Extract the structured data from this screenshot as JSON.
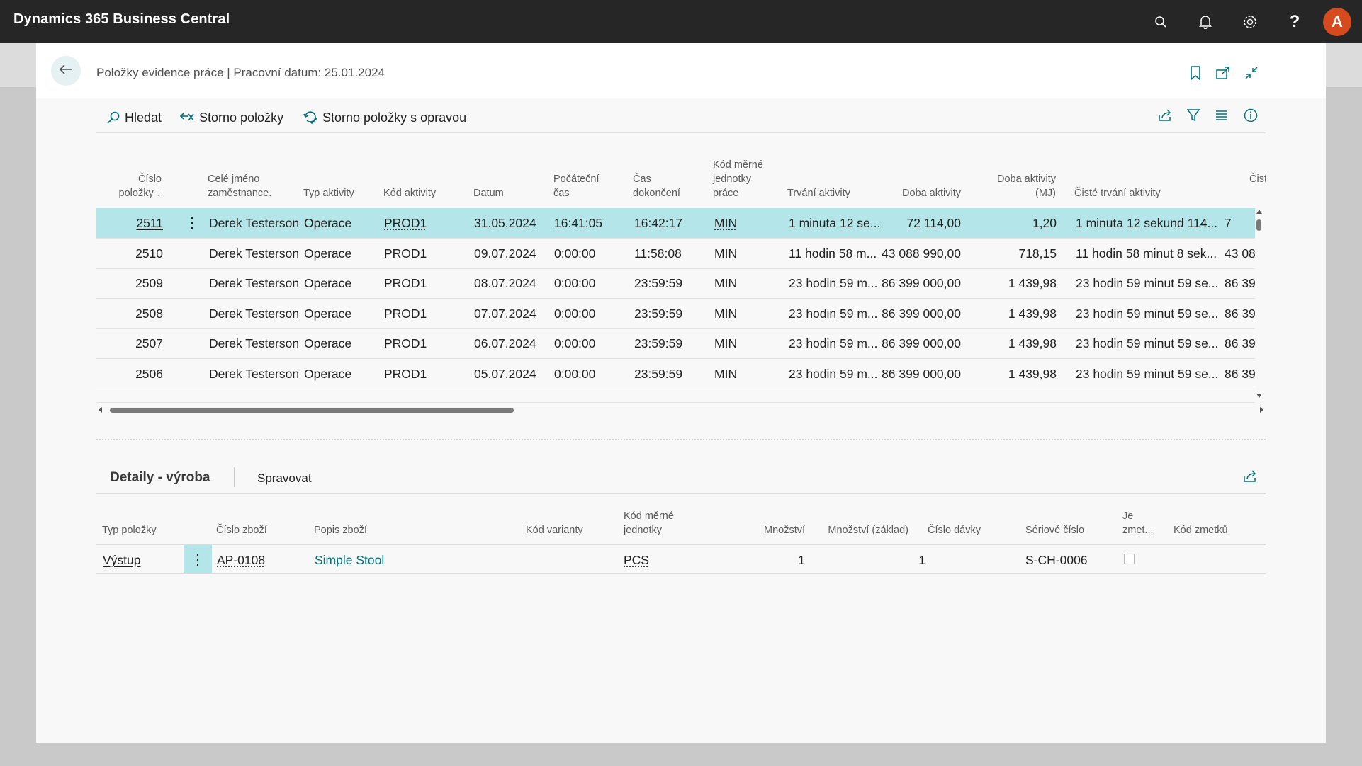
{
  "app": {
    "title": "Dynamics 365 Business Central",
    "user_initial": "A"
  },
  "page": {
    "title": "Položky evidence práce | Pracovní datum: 25.01.2024"
  },
  "actions": {
    "search": "Hledat",
    "reverse": "Storno položky",
    "reverse_correct": "Storno položky s opravou"
  },
  "columns": {
    "entry_no": [
      "Číslo",
      "položky ↓"
    ],
    "employee": [
      "Celé jméno",
      "zaměstnance."
    ],
    "activity_type": "Typ aktivity",
    "activity_code": "Kód aktivity",
    "date": "Datum",
    "start": [
      "Počáteční",
      "čas"
    ],
    "end": [
      "Čas",
      "dokončení"
    ],
    "uom": [
      "Kód měrné",
      "jednotky",
      "práce"
    ],
    "duration": "Trvání aktivity",
    "time": "Doba aktivity",
    "time_uom": [
      "Doba aktivity",
      "(MJ)"
    ],
    "net_duration": "Čisté trvání aktivity",
    "net_cut": "Čist"
  },
  "rows": [
    {
      "no": "2511",
      "employee": "Derek Testerson",
      "type": "Operace",
      "code": "PROD1",
      "date": "31.05.2024",
      "start": "16:41:05",
      "end": "16:42:17",
      "uom": "MIN",
      "duration": "1 minuta 12 se...",
      "time": "72 114,00",
      "time_uom": "1,20",
      "net": "1 minuta 12 sekund 114...",
      "extra": "7"
    },
    {
      "no": "2510",
      "employee": "Derek Testerson",
      "type": "Operace",
      "code": "PROD1",
      "date": "09.07.2024",
      "start": "0:00:00",
      "end": "11:58:08",
      "uom": "MIN",
      "duration": "11 hodin 58 m...",
      "time": "43 088 990,00",
      "time_uom": "718,15",
      "net": "11 hodin 58 minut 8 sek...",
      "extra": "43 08"
    },
    {
      "no": "2509",
      "employee": "Derek Testerson",
      "type": "Operace",
      "code": "PROD1",
      "date": "08.07.2024",
      "start": "0:00:00",
      "end": "23:59:59",
      "uom": "MIN",
      "duration": "23 hodin 59 m...",
      "time": "86 399 000,00",
      "time_uom": "1 439,98",
      "net": "23 hodin 59 minut 59 se...",
      "extra": "86 39"
    },
    {
      "no": "2508",
      "employee": "Derek Testerson",
      "type": "Operace",
      "code": "PROD1",
      "date": "07.07.2024",
      "start": "0:00:00",
      "end": "23:59:59",
      "uom": "MIN",
      "duration": "23 hodin 59 m...",
      "time": "86 399 000,00",
      "time_uom": "1 439,98",
      "net": "23 hodin 59 minut 59 se...",
      "extra": "86 39"
    },
    {
      "no": "2507",
      "employee": "Derek Testerson",
      "type": "Operace",
      "code": "PROD1",
      "date": "06.07.2024",
      "start": "0:00:00",
      "end": "23:59:59",
      "uom": "MIN",
      "duration": "23 hodin 59 m...",
      "time": "86 399 000,00",
      "time_uom": "1 439,98",
      "net": "23 hodin 59 minut 59 se...",
      "extra": "86 39"
    },
    {
      "no": "2506",
      "employee": "Derek Testerson",
      "type": "Operace",
      "code": "PROD1",
      "date": "05.07.2024",
      "start": "0:00:00",
      "end": "23:59:59",
      "uom": "MIN",
      "duration": "23 hodin 59 m...",
      "time": "86 399 000,00",
      "time_uom": "1 439,98",
      "net": "23 hodin 59 minut 59 se...",
      "extra": "86 39"
    }
  ],
  "subpage": {
    "title": "Detaily - výroba",
    "manage": "Spravovat",
    "columns": {
      "entry_type": "Typ položky",
      "item_no": "Číslo zboží",
      "description": "Popis zboží",
      "variant": "Kód varianty",
      "uom": [
        "Kód měrné",
        "jednotky"
      ],
      "qty": "Množství",
      "qty_base": "Množství (základ)",
      "lot": "Číslo dávky",
      "serial": "Sériové číslo",
      "scrap": [
        "Je",
        "zmet..."
      ],
      "scrap_code": "Kód zmetků"
    },
    "row": {
      "entry_type": "Výstup",
      "item_no": "AP-0108",
      "description": "Simple Stool",
      "variant": "",
      "uom": "PCS",
      "qty": "1",
      "qty_base": "1",
      "lot": "",
      "serial": "S-CH-0006",
      "scrap": false
    }
  },
  "colors": {
    "accent": "#00707a",
    "selected_row": "#b3e5e9",
    "appbar": "#262626",
    "avatar": "#d64b1e"
  },
  "icons": [
    "search-icon",
    "bell-icon",
    "gear-icon",
    "help-icon",
    "back-arrow-icon",
    "bookmark-icon",
    "open-new-window-icon",
    "collapse-icon",
    "share-icon",
    "filter-icon",
    "list-view-icon",
    "info-icon"
  ]
}
